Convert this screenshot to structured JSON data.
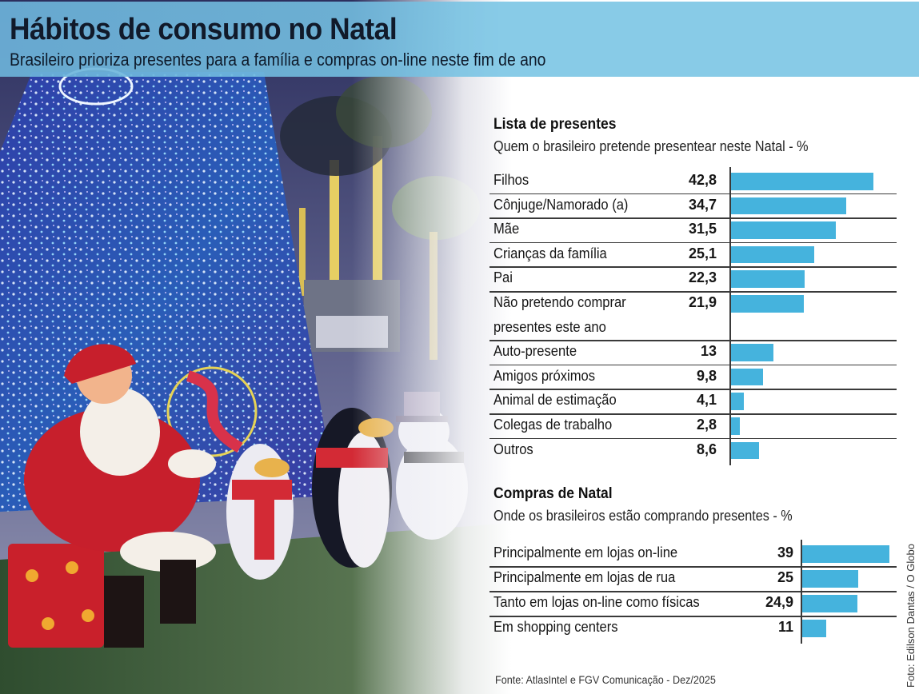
{
  "header": {
    "title": "Hábitos de consumo no Natal",
    "subtitle": "Brasileiro prioriza presentes para a família e compras on-line neste fim de ano"
  },
  "colors": {
    "header_band": "#78c4e4",
    "bar": "#45b3dd",
    "text": "#161616"
  },
  "chart_data": [
    {
      "type": "bar",
      "orientation": "horizontal",
      "title": "Lista de presentes",
      "subtitle": "Quem o brasileiro pretende presentear neste Natal - %",
      "categories": [
        "Filhos",
        "Cônjuge/Namorado (a)",
        "Mãe",
        "Crianças da família",
        "Pai",
        "Não pretendo comprar presentes este ano",
        "Auto-presente",
        "Amigos próximos",
        "Animal de estimação",
        "Colegas de trabalho",
        "Outros"
      ],
      "category_lines": [
        [
          "Filhos"
        ],
        [
          "Cônjuge/Namorado (a)"
        ],
        [
          "Mãe"
        ],
        [
          "Crianças da família"
        ],
        [
          "Pai"
        ],
        [
          "Não pretendo comprar",
          "presentes este ano"
        ],
        [
          "Auto-presente"
        ],
        [
          "Amigos próximos"
        ],
        [
          "Animal de estimação"
        ],
        [
          "Colegas de trabalho"
        ],
        [
          "Outros"
        ]
      ],
      "value_labels": [
        "42,8",
        "34,7",
        "31,5",
        "25,1",
        "22,3",
        "21,9",
        "13",
        "9,8",
        "4,1",
        "2,8",
        "8,6"
      ],
      "values": [
        42.8,
        34.7,
        31.5,
        25.1,
        22.3,
        21.9,
        13,
        9.8,
        4.1,
        2.8,
        8.6
      ],
      "unit": "%",
      "xlim": [
        0,
        50
      ],
      "grid": false,
      "legend": "none"
    },
    {
      "type": "bar",
      "orientation": "horizontal",
      "title": "Compras de Natal",
      "subtitle": "Onde os brasileiros estão comprando presentes - %",
      "categories": [
        "Principalmente em lojas on-line",
        "Principalmente em lojas de rua",
        "Tanto em lojas on-line como físicas",
        "Em shopping centers"
      ],
      "category_lines": [
        [
          "Principalmente em lojas on-line"
        ],
        [
          "Principalmente em lojas de rua"
        ],
        [
          "Tanto em lojas on-line como físicas"
        ],
        [
          "Em shopping centers"
        ]
      ],
      "value_labels": [
        "39",
        "25",
        "24,9",
        "11"
      ],
      "values": [
        39,
        25,
        24.9,
        11
      ],
      "unit": "%",
      "xlim": [
        0,
        45
      ],
      "grid": false,
      "legend": "none"
    }
  ],
  "footer": {
    "source": "Fonte: AtlasIntel e FGV Comunicação - Dez/2025",
    "photo_credit": "Foto: Edilson Dantas / O Globo"
  }
}
